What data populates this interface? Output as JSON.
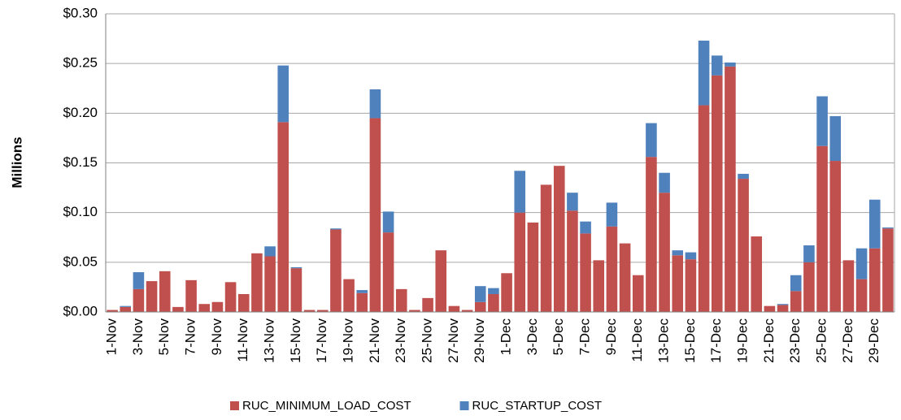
{
  "chart_data": {
    "type": "stacked-bar",
    "ylabel": "Millions",
    "categories": [
      "1-Nov",
      null,
      "3-Nov",
      null,
      "5-Nov",
      null,
      "7-Nov",
      null,
      "9-Nov",
      null,
      "11-Nov",
      null,
      "13-Nov",
      null,
      "15-Nov",
      null,
      "17-Nov",
      null,
      "19-Nov",
      null,
      "21-Nov",
      null,
      "23-Nov",
      null,
      "25-Nov",
      null,
      "27-Nov",
      null,
      "29-Nov",
      null,
      "1-Dec",
      null,
      "3-Dec",
      null,
      "5-Dec",
      null,
      "7-Dec",
      null,
      "9-Dec",
      null,
      "11-Dec",
      null,
      "13-Dec",
      null,
      "15-Dec",
      null,
      "17-Dec",
      null,
      "19-Dec",
      null,
      "21-Dec",
      null,
      "23-Dec",
      null,
      "25-Dec",
      null,
      "27-Dec",
      null,
      "29-Dec",
      null
    ],
    "series": [
      {
        "name": "RUC_MINIMUM_LOAD_COST",
        "color": "#c0504d",
        "values": [
          0.002,
          0.005,
          0.023,
          0.031,
          0.041,
          0.005,
          0.032,
          0.008,
          0.01,
          0.03,
          0.018,
          0.059,
          0.056,
          0.191,
          0.044,
          0.002,
          0.002,
          0.083,
          0.033,
          0.019,
          0.195,
          0.08,
          0.023,
          0.002,
          0.014,
          0.062,
          0.006,
          0.002,
          0.01,
          0.018,
          0.039,
          0.1,
          0.09,
          0.128,
          0.147,
          0.102,
          0.079,
          0.052,
          0.086,
          0.069,
          0.037,
          0.156,
          0.12,
          0.057,
          0.053,
          0.208,
          0.238,
          0.247,
          0.134,
          0.076,
          0.006,
          0.007,
          0.021,
          0.05,
          0.167,
          0.152,
          0.052,
          0.033,
          0.064,
          0.084
        ]
      },
      {
        "name": "RUC_STARTUP_COST",
        "color": "#4f81bd",
        "values": [
          0,
          0.001,
          0.017,
          0,
          0,
          0,
          0,
          0,
          0,
          0,
          0,
          0,
          0.01,
          0.057,
          0.001,
          0,
          0,
          0.001,
          0,
          0.003,
          0.029,
          0.021,
          0,
          0,
          0,
          0,
          0,
          0,
          0.016,
          0.006,
          0,
          0.042,
          0,
          0,
          0,
          0.018,
          0.012,
          0,
          0.024,
          0,
          0,
          0.034,
          0.02,
          0.005,
          0.007,
          0.065,
          0.02,
          0.004,
          0.005,
          0,
          0,
          0.001,
          0.016,
          0.017,
          0.05,
          0.045,
          0,
          0.031,
          0.049,
          0.001
        ]
      }
    ],
    "ylim": [
      0,
      0.3
    ],
    "yticks": [
      {
        "value": 0,
        "label": "$0.00"
      },
      {
        "value": 0.05,
        "label": "$0.05"
      },
      {
        "value": 0.1,
        "label": "$0.10"
      },
      {
        "value": 0.15,
        "label": "$0.15"
      },
      {
        "value": 0.2,
        "label": "$0.20"
      },
      {
        "value": 0.25,
        "label": "$0.25"
      },
      {
        "value": 0.3,
        "label": "$0.30"
      }
    ],
    "grid": true,
    "legend": "bottom"
  }
}
